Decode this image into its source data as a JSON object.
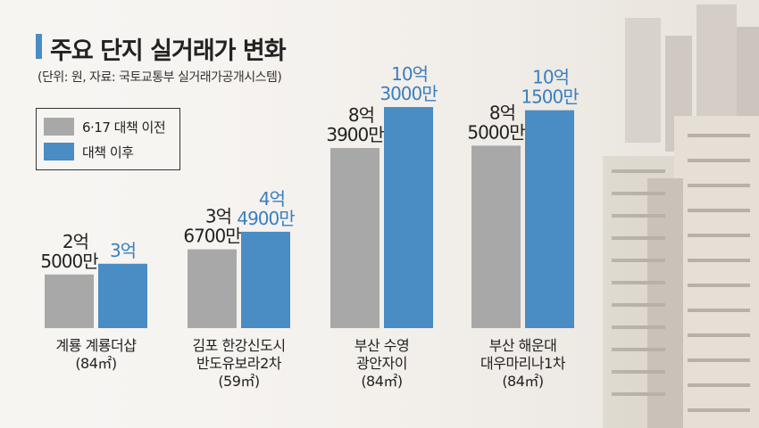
{
  "header": {
    "title": "주요 단지 실거래가 변화",
    "subtitle": "(단위: 원, 자료: 국토교통부 실거래가공개시스템)"
  },
  "legend": [
    {
      "label": "6·17 대책 이전",
      "color": "#a8a8a8"
    },
    {
      "label": "대책 이후",
      "color": "#4a8cc4"
    }
  ],
  "chart_data": {
    "type": "bar",
    "title": "주요 단지 실거래가 변화",
    "categories": [
      "계룡 계룡더샵\n(84㎡)",
      "김포 한강신도시\n반도유보라2차\n(59㎡)",
      "부산 수영\n광안자이\n(84㎡)",
      "부산 해운대\n대우마리나1차\n(84㎡)"
    ],
    "series": [
      {
        "name": "6·17 대책 이전",
        "color": "#a8a8a8",
        "values": [
          250000000,
          367000000,
          839000000,
          850000000
        ],
        "labels": [
          [
            "2억",
            "5000만"
          ],
          [
            "3억",
            "6700만"
          ],
          [
            "8억",
            "3900만"
          ],
          [
            "8억",
            "5000만"
          ]
        ]
      },
      {
        "name": "대책 이후",
        "color": "#4a8cc4",
        "values": [
          300000000,
          449000000,
          1030000000,
          1015000000
        ],
        "labels": [
          [
            "3억"
          ],
          [
            "4억",
            "4900만"
          ],
          [
            "10억",
            "3000만"
          ],
          [
            "10억",
            "1500만"
          ]
        ]
      }
    ],
    "ylim": [
      0,
      1080000000
    ],
    "grid": false,
    "legend_position": "top-left"
  }
}
